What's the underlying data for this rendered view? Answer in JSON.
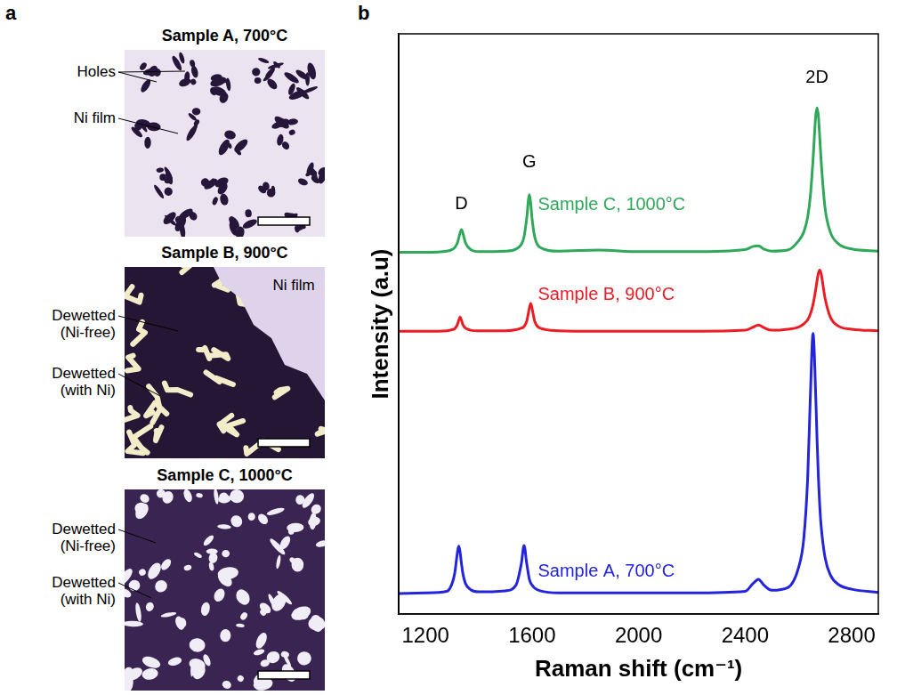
{
  "panel_a": {
    "letter": "a",
    "images": [
      {
        "title": "Sample A, 700°C",
        "labels": [
          "Holes",
          "Ni film"
        ]
      },
      {
        "title": "Sample B, 900°C",
        "labels": [
          "Dewetted (Ni-free)",
          "Dewetted (with Ni)"
        ],
        "inset_label": "Ni film"
      },
      {
        "title": "Sample C, 1000°C",
        "labels": [
          "Dewetted (Ni-free)",
          "Dewetted (with Ni)"
        ]
      }
    ]
  },
  "panel_b": {
    "letter": "b"
  },
  "chart_data": {
    "type": "line",
    "x_label": "Raman shift (cm⁻¹)",
    "y_label": "Intensity (a.u)",
    "x": [
      1100,
      1200,
      1280,
      1300,
      1310,
      1320,
      1325,
      1330,
      1335,
      1340,
      1350,
      1370,
      1400,
      1500,
      1540,
      1560,
      1570,
      1580,
      1590,
      1595,
      1600,
      1610,
      1630,
      1700,
      1850,
      2000,
      2200,
      2400,
      2430,
      2450,
      2470,
      2500,
      2560,
      2600,
      2620,
      2635,
      2645,
      2655,
      2665,
      2670,
      2675,
      2680,
      2685,
      2700,
      2720,
      2750,
      2800,
      2900
    ],
    "series": [
      {
        "name": "Sample A, 700°C",
        "color": "#2424dc",
        "values": [
          3.9,
          4.0,
          4.3,
          5.8,
          7.8,
          11.7,
          12.9,
          11.7,
          9.6,
          7.8,
          5.8,
          4.6,
          4.2,
          4.4,
          5.5,
          9.6,
          13.0,
          9.6,
          6.6,
          5.9,
          5.5,
          4.9,
          4.4,
          4.0,
          4.0,
          4.0,
          4.0,
          4.3,
          5.8,
          6.6,
          5.5,
          4.5,
          5.0,
          8.7,
          14.2,
          26.0,
          41.5,
          53.2,
          41.5,
          33.1,
          26.0,
          20.7,
          16.9,
          10.7,
          7.4,
          5.6,
          4.7,
          4.1
        ]
      },
      {
        "name": "Sample B, 900°C",
        "color": "#ec1c24",
        "values": [
          53.6,
          53.6,
          53.7,
          53.9,
          54.1,
          54.9,
          55.7,
          56.3,
          55.7,
          54.9,
          54.2,
          53.8,
          53.7,
          53.7,
          53.9,
          54.2,
          54.5,
          55.5,
          58.0,
          58.9,
          58.0,
          55.5,
          54.2,
          53.7,
          53.6,
          53.6,
          53.6,
          53.8,
          54.4,
          54.8,
          54.3,
          53.8,
          54.0,
          54.4,
          55.0,
          55.8,
          56.9,
          58.7,
          61.5,
          63.2,
          64.6,
          65.2,
          64.6,
          59.9,
          56.3,
          54.6,
          54.0,
          53.7
        ]
      },
      {
        "name": "Sample C, 1000°C",
        "color": "#2fa85a",
        "values": [
          68.6,
          68.6,
          68.8,
          69.1,
          69.5,
          70.4,
          71.3,
          72.3,
          72.9,
          72.3,
          70.4,
          69.1,
          68.7,
          68.8,
          69.2,
          70.1,
          71.5,
          75.0,
          79.5,
          77.9,
          75.0,
          71.5,
          69.5,
          68.8,
          69.0,
          68.7,
          68.7,
          69.1,
          69.7,
          69.8,
          69.2,
          68.8,
          69.0,
          70.7,
          72.4,
          75.3,
          79.3,
          86.2,
          94.4,
          96.0,
          94.4,
          90.5,
          86.2,
          77.0,
          72.4,
          70.2,
          69.2,
          68.8
        ]
      }
    ],
    "xlim": [
      1100,
      2900
    ],
    "xticks": [
      1200,
      1600,
      2000,
      2400,
      2800
    ],
    "ylim": [
      0,
      110
    ],
    "grid": false,
    "tick_labels": "x",
    "annotations": [
      {
        "text": "D",
        "x": 1335,
        "y": 76
      },
      {
        "text": "G",
        "x": 1590,
        "y": 84
      },
      {
        "text": "2D",
        "x": 2670,
        "y": 100
      }
    ]
  }
}
